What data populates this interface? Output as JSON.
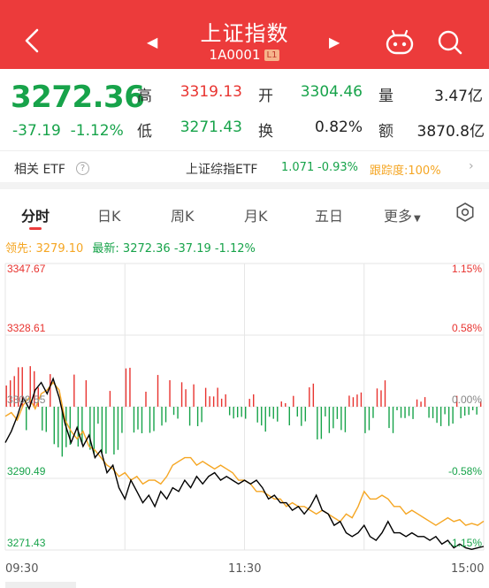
{
  "header": {
    "title": "上证指数",
    "code": "1A0001",
    "level_badge": "L1",
    "back_icon": "chevron-left-icon",
    "prev_icon": "triangle-left-icon",
    "next_icon": "triangle-right-icon",
    "bot_icon": "robot-icon",
    "search_icon": "search-icon"
  },
  "quote": {
    "price": "3272.36",
    "change": "-37.19",
    "change_pct": "-1.12%",
    "high_label": "高",
    "high": "3319.13",
    "open_label": "开",
    "open": "3304.46",
    "volume_label": "量",
    "volume": "3.47亿",
    "low_label": "低",
    "low": "3271.43",
    "turnover_label": "换",
    "turnover": "0.82%",
    "amount_label": "额",
    "amount": "3870.8亿"
  },
  "etf": {
    "label": "相关 ETF",
    "name": "上证综指ETF",
    "price": "1.071",
    "change_pct": "-0.93%",
    "tracking": "跟踪度:100%"
  },
  "tabs": [
    {
      "label": "分时",
      "active": true
    },
    {
      "label": "日K"
    },
    {
      "label": "周K"
    },
    {
      "label": "月K"
    },
    {
      "label": "五日"
    },
    {
      "label": "更多"
    }
  ],
  "legend": {
    "lead": "领先: 3279.10",
    "latest": "最新: 3272.36  -37.19  -1.12%"
  },
  "colors": {
    "up": "#e8332f",
    "down": "#17a34a",
    "lead_line": "#f5a623",
    "price_line": "#000000",
    "header": "#ec3b3b"
  },
  "chart_data": {
    "type": "line",
    "y_labels_left": [
      "3347.67",
      "3328.61",
      "3309.55",
      "3290.49",
      "3271.43"
    ],
    "y_labels_right": [
      "1.15%",
      "0.58%",
      "0.00%",
      "-0.58%",
      "-1.15%"
    ],
    "ylim": [
      3271.43,
      3347.67
    ],
    "x_labels": [
      "09:30",
      "11:30",
      "15:00"
    ],
    "total_minutes": 240,
    "series": [
      {
        "name": "最新",
        "color": "#000000",
        "points": [
          [
            0,
            3300
          ],
          [
            3,
            3303
          ],
          [
            6,
            3307
          ],
          [
            9,
            3312
          ],
          [
            12,
            3309
          ],
          [
            15,
            3314
          ],
          [
            18,
            3316
          ],
          [
            21,
            3313
          ],
          [
            24,
            3317
          ],
          [
            27,
            3312
          ],
          [
            30,
            3305
          ],
          [
            33,
            3300
          ],
          [
            36,
            3304
          ],
          [
            39,
            3299
          ],
          [
            42,
            3302
          ],
          [
            45,
            3296
          ],
          [
            48,
            3298
          ],
          [
            51,
            3292
          ],
          [
            54,
            3294
          ],
          [
            57,
            3288
          ],
          [
            60,
            3285
          ],
          [
            63,
            3290
          ],
          [
            66,
            3287
          ],
          [
            69,
            3284
          ],
          [
            72,
            3286
          ],
          [
            75,
            3283
          ],
          [
            78,
            3287
          ],
          [
            81,
            3285
          ],
          [
            84,
            3288
          ],
          [
            87,
            3287
          ],
          [
            90,
            3290
          ],
          [
            93,
            3288
          ],
          [
            96,
            3291
          ],
          [
            99,
            3289
          ],
          [
            102,
            3291
          ],
          [
            105,
            3292
          ],
          [
            108,
            3290
          ],
          [
            111,
            3291
          ],
          [
            114,
            3290
          ],
          [
            117,
            3289
          ],
          [
            120,
            3290
          ],
          [
            123,
            3289
          ],
          [
            126,
            3290
          ],
          [
            129,
            3288
          ],
          [
            132,
            3285
          ],
          [
            135,
            3286
          ],
          [
            138,
            3284
          ],
          [
            141,
            3284
          ],
          [
            144,
            3282
          ],
          [
            147,
            3283
          ],
          [
            150,
            3281
          ],
          [
            153,
            3283
          ],
          [
            156,
            3286
          ],
          [
            159,
            3282
          ],
          [
            162,
            3281
          ],
          [
            165,
            3278
          ],
          [
            168,
            3279
          ],
          [
            171,
            3276
          ],
          [
            174,
            3275
          ],
          [
            177,
            3276
          ],
          [
            180,
            3278
          ],
          [
            183,
            3275
          ],
          [
            186,
            3274
          ],
          [
            189,
            3276
          ],
          [
            192,
            3279
          ],
          [
            195,
            3276
          ],
          [
            198,
            3276
          ],
          [
            201,
            3275
          ],
          [
            204,
            3276
          ],
          [
            207,
            3275
          ],
          [
            210,
            3275
          ],
          [
            213,
            3274
          ],
          [
            216,
            3275
          ],
          [
            219,
            3273
          ],
          [
            222,
            3274
          ],
          [
            225,
            3272
          ],
          [
            228,
            3273
          ],
          [
            231,
            3272
          ],
          [
            234,
            3271.6
          ],
          [
            237,
            3272
          ],
          [
            240,
            3272.36
          ]
        ]
      },
      {
        "name": "领先",
        "color": "#f5a623",
        "points": [
          [
            0,
            3307
          ],
          [
            3,
            3308
          ],
          [
            6,
            3306
          ],
          [
            9,
            3310
          ],
          [
            12,
            3312
          ],
          [
            15,
            3309
          ],
          [
            18,
            3313
          ],
          [
            21,
            3314
          ],
          [
            24,
            3316
          ],
          [
            27,
            3314
          ],
          [
            30,
            3306
          ],
          [
            33,
            3303
          ],
          [
            36,
            3301
          ],
          [
            39,
            3303
          ],
          [
            42,
            3299
          ],
          [
            45,
            3298
          ],
          [
            48,
            3296
          ],
          [
            51,
            3294
          ],
          [
            54,
            3293
          ],
          [
            57,
            3291
          ],
          [
            60,
            3292
          ],
          [
            63,
            3290
          ],
          [
            66,
            3291
          ],
          [
            69,
            3289
          ],
          [
            72,
            3290
          ],
          [
            75,
            3290
          ],
          [
            78,
            3289
          ],
          [
            81,
            3291
          ],
          [
            84,
            3294
          ],
          [
            87,
            3295
          ],
          [
            90,
            3296
          ],
          [
            93,
            3296
          ],
          [
            96,
            3294
          ],
          [
            99,
            3295
          ],
          [
            102,
            3294
          ],
          [
            105,
            3293
          ],
          [
            108,
            3294
          ],
          [
            111,
            3293
          ],
          [
            114,
            3292
          ],
          [
            117,
            3290
          ],
          [
            120,
            3290
          ],
          [
            123,
            3289
          ],
          [
            126,
            3287
          ],
          [
            129,
            3287
          ],
          [
            132,
            3286
          ],
          [
            135,
            3285
          ],
          [
            138,
            3285
          ],
          [
            141,
            3283
          ],
          [
            144,
            3284
          ],
          [
            147,
            3283
          ],
          [
            150,
            3283
          ],
          [
            153,
            3282
          ],
          [
            156,
            3281
          ],
          [
            159,
            3282
          ],
          [
            162,
            3281
          ],
          [
            165,
            3280
          ],
          [
            168,
            3279
          ],
          [
            171,
            3281
          ],
          [
            174,
            3280
          ],
          [
            177,
            3283
          ],
          [
            180,
            3287
          ],
          [
            183,
            3285
          ],
          [
            186,
            3285
          ],
          [
            189,
            3286
          ],
          [
            192,
            3285
          ],
          [
            195,
            3283
          ],
          [
            198,
            3283
          ],
          [
            201,
            3281
          ],
          [
            204,
            3282
          ],
          [
            207,
            3281
          ],
          [
            210,
            3280
          ],
          [
            213,
            3279
          ],
          [
            216,
            3278
          ],
          [
            219,
            3279
          ],
          [
            222,
            3280
          ],
          [
            225,
            3279
          ],
          [
            228,
            3279.5
          ],
          [
            231,
            3278
          ],
          [
            234,
            3278.5
          ],
          [
            237,
            3278
          ],
          [
            240,
            3279.1
          ]
        ]
      }
    ]
  }
}
